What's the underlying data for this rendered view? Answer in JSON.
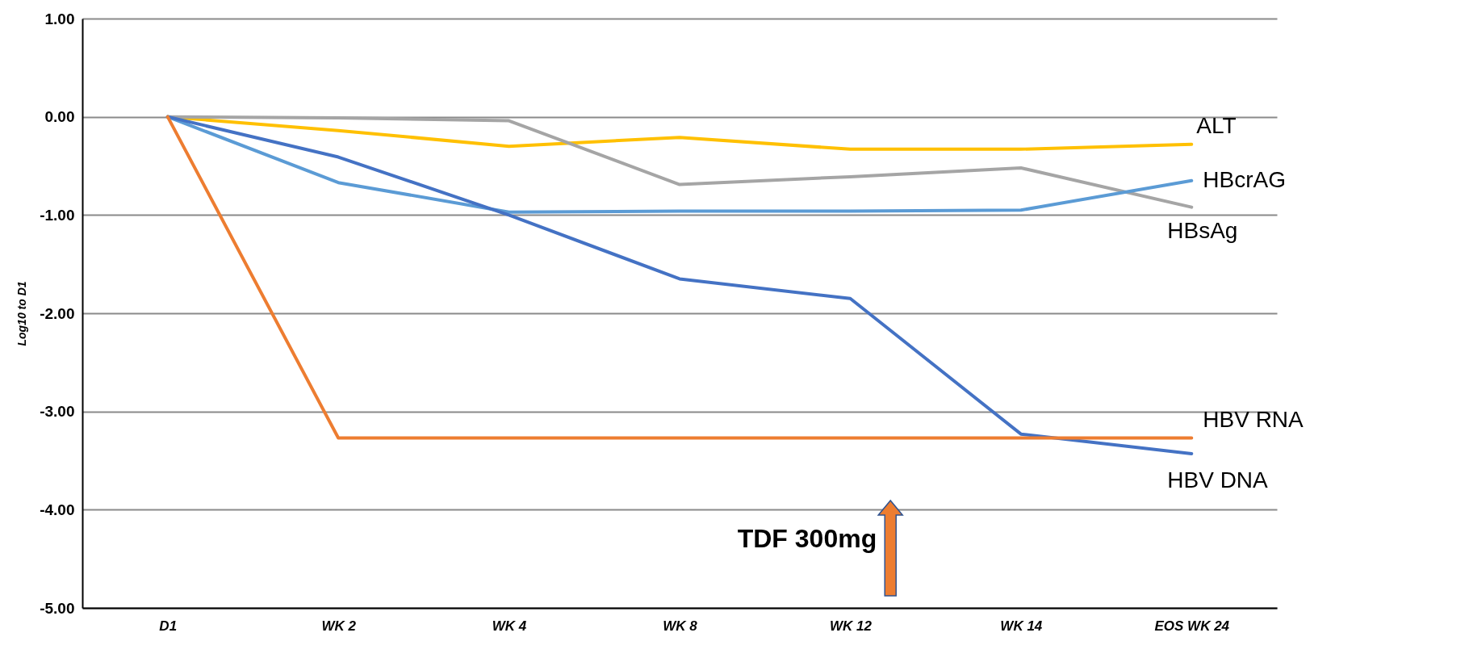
{
  "chart_data": {
    "type": "line",
    "ylabel": "Log10 to D1",
    "categories": [
      "D1",
      "WK 2",
      "WK 4",
      "WK 8",
      "WK 12",
      "WK 14",
      "EOS WK 24"
    ],
    "series": [
      {
        "name": "ALT",
        "color": "#ffc000",
        "values": [
          0,
          -0.14,
          -0.3,
          -0.21,
          -0.33,
          -0.33,
          -0.28
        ]
      },
      {
        "name": "HBsAg",
        "color": "#a5a5a5",
        "values": [
          0,
          -0.01,
          -0.04,
          -0.69,
          -0.61,
          -0.52,
          -0.92
        ]
      },
      {
        "name": "HBcrAG",
        "color": "#5b9bd5",
        "values": [
          0,
          -0.67,
          -0.97,
          -0.96,
          -0.96,
          -0.95,
          -0.65
        ]
      },
      {
        "name": "HBV DNA",
        "color": "#4472c4",
        "values": [
          0,
          -0.41,
          -1.0,
          -1.65,
          -1.85,
          -3.23,
          -3.43
        ]
      },
      {
        "name": "HBV RNA",
        "color": "#ed7d31",
        "values": [
          0,
          -3.27,
          -3.27,
          -3.27,
          -3.27,
          -3.27,
          -3.27
        ]
      }
    ],
    "ylim": [
      -5,
      1
    ],
    "yticks": [
      {
        "value": 1,
        "label": "1.00"
      },
      {
        "value": 0,
        "label": "0.00"
      },
      {
        "value": -1,
        "label": "-1.00"
      },
      {
        "value": -2,
        "label": "-2.00"
      },
      {
        "value": -3,
        "label": "-3.00"
      },
      {
        "value": -4,
        "label": "-4.00"
      },
      {
        "value": -5,
        "label": "-5.00"
      }
    ],
    "grid": "y",
    "legend": false,
    "marker": "none",
    "line_style": "solid",
    "annotations": [
      "TDF 300mg"
    ]
  }
}
